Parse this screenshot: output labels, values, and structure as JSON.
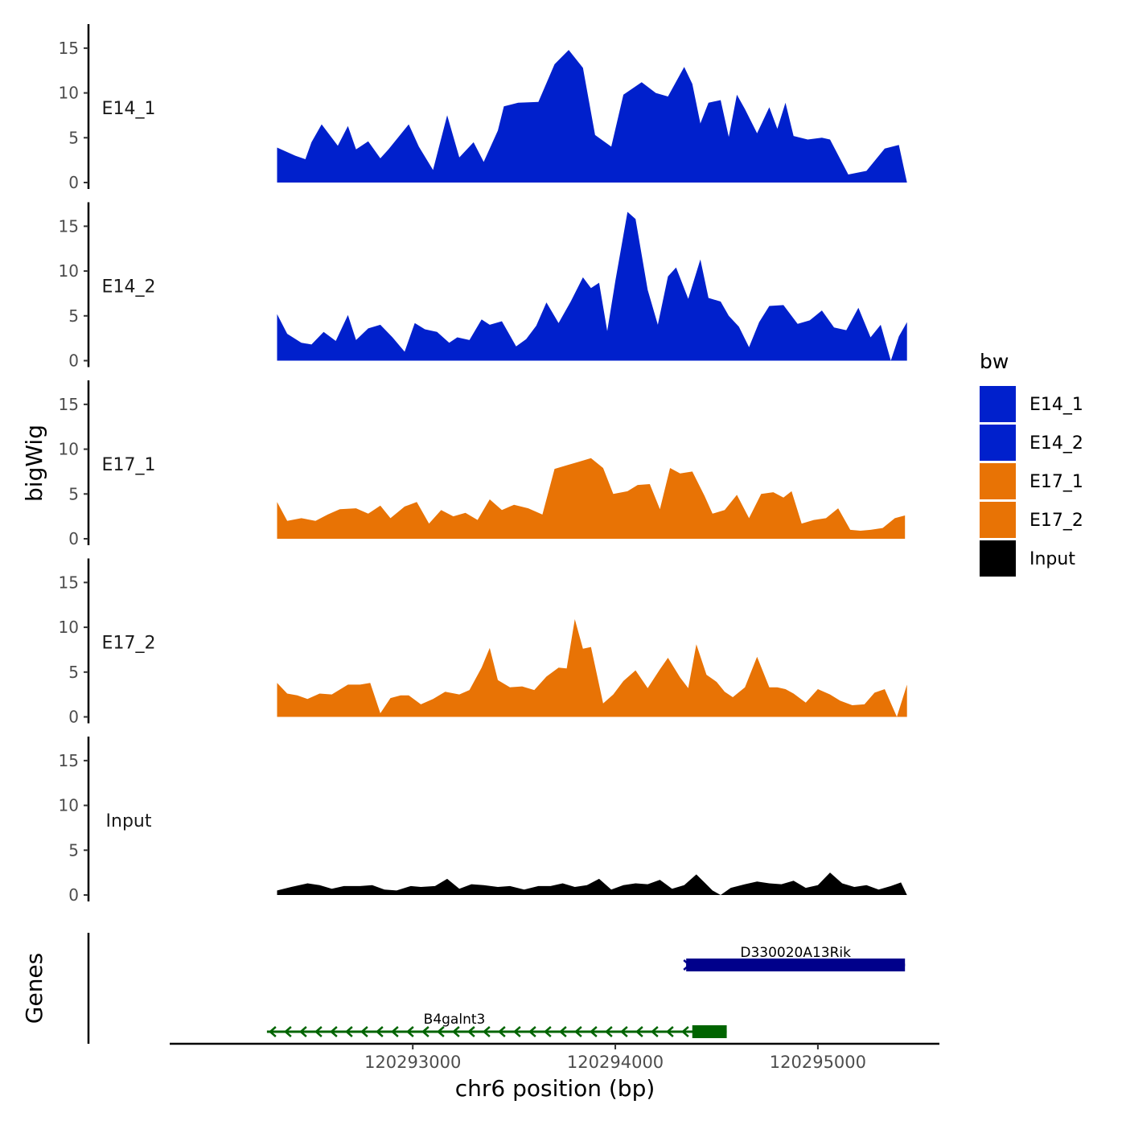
{
  "chart_data": {
    "type": "area",
    "title": "",
    "xlabel": "chr6 position (bp)",
    "ylabel": "bigWig",
    "genes_label": "Genes",
    "xlim": [
      120291800,
      120295600
    ],
    "x_ticks": [
      120293000,
      120294000,
      120295000
    ],
    "x_tick_labels": [
      "120293000",
      "120294000",
      "120295000"
    ],
    "ylim": [
      0,
      17.5
    ],
    "y_ticks": [
      0,
      5,
      10,
      15
    ],
    "y_tick_labels": [
      "0",
      "5",
      "10",
      "15"
    ],
    "grid": false,
    "legend": {
      "title": "bw",
      "position": "right",
      "entries": [
        {
          "label": "E14_1",
          "color": "#0020CC"
        },
        {
          "label": "E14_2",
          "color": "#0020CC"
        },
        {
          "label": "E17_1",
          "color": "#E87305"
        },
        {
          "label": "E17_2",
          "color": "#E87305"
        },
        {
          "label": "Input",
          "color": "#000000"
        }
      ]
    },
    "series": [
      {
        "name": "E14_1",
        "color": "#0020CC",
        "x": [
          120292330,
          120292420,
          120292470,
          120292500,
          120292550,
          120292630,
          120292680,
          120292720,
          120292780,
          120292840,
          120292880,
          120292980,
          120293030,
          120293100,
          120293170,
          120293230,
          120293300,
          120293350,
          120293420,
          120293450,
          120293520,
          120293620,
          120293700,
          120293770,
          120293840,
          120293900,
          120293980,
          120294040,
          120294130,
          120294200,
          120294260,
          120294340,
          120294380,
          120294420,
          120294460,
          120294520,
          120294560,
          120294600,
          120294640,
          120294700,
          120294760,
          120294800,
          120294840,
          120294880,
          120294950,
          120295020,
          120295060,
          120295150,
          120295240,
          120295330,
          120295400,
          120295440
        ],
        "y": [
          3.9,
          3.0,
          2.6,
          4.5,
          6.5,
          4.1,
          6.3,
          3.7,
          4.6,
          2.7,
          3.7,
          6.5,
          4.0,
          1.4,
          7.5,
          2.8,
          4.5,
          2.3,
          5.8,
          8.5,
          8.9,
          9.0,
          13.2,
          14.8,
          12.8,
          5.3,
          4.0,
          9.8,
          11.2,
          10.0,
          9.6,
          12.9,
          11.0,
          6.6,
          8.9,
          9.2,
          5.1,
          9.8,
          8.2,
          5.5,
          8.4,
          6.0,
          8.9,
          5.2,
          4.8,
          5.0,
          4.8,
          0.9,
          1.3,
          3.8,
          4.2,
          0.0
        ]
      },
      {
        "name": "E14_2",
        "color": "#0020CC",
        "x": [
          120292330,
          120292380,
          120292450,
          120292500,
          120292560,
          120292620,
          120292680,
          120292720,
          120292780,
          120292840,
          120292900,
          120292960,
          120293010,
          120293060,
          120293120,
          120293180,
          120293220,
          120293280,
          120293340,
          120293380,
          120293440,
          120293510,
          120293560,
          120293610,
          120293660,
          120293720,
          120293780,
          120293840,
          120293880,
          120293920,
          120293960,
          120294000,
          120294060,
          120294100,
          120294160,
          120294210,
          120294260,
          120294300,
          120294360,
          120294420,
          120294460,
          120294520,
          120294560,
          120294610,
          120294660,
          120294710,
          120294760,
          120294830,
          120294900,
          120294960,
          120295020,
          120295080,
          120295140,
          120295200,
          120295260,
          120295310,
          120295360,
          120295400,
          120295440
        ],
        "y": [
          5.2,
          3.0,
          2.0,
          1.8,
          3.2,
          2.2,
          5.1,
          2.3,
          3.6,
          4.0,
          2.6,
          1.0,
          4.2,
          3.5,
          3.2,
          2.0,
          2.6,
          2.3,
          4.6,
          4.0,
          4.4,
          1.6,
          2.4,
          3.9,
          6.5,
          4.2,
          6.6,
          9.3,
          8.1,
          8.7,
          3.3,
          8.9,
          16.6,
          15.8,
          7.9,
          4.0,
          9.4,
          10.4,
          6.9,
          11.3,
          7.0,
          6.6,
          5.0,
          3.8,
          1.5,
          4.3,
          6.1,
          6.2,
          4.1,
          4.5,
          5.6,
          3.7,
          3.4,
          5.9,
          2.6,
          4.0,
          0.0,
          2.7,
          4.3
        ]
      },
      {
        "name": "E17_1",
        "color": "#E87305",
        "x": [
          120292330,
          120292380,
          120292450,
          120292520,
          120292580,
          120292640,
          120292720,
          120292780,
          120292840,
          120292890,
          120292960,
          120293020,
          120293080,
          120293140,
          120293200,
          120293260,
          120293320,
          120293380,
          120293440,
          120293500,
          120293570,
          120293640,
          120293700,
          120293760,
          120293820,
          120293880,
          120293940,
          120293990,
          120294060,
          120294110,
          120294170,
          120294220,
          120294270,
          120294320,
          120294380,
          120294440,
          120294480,
          120294540,
          120294600,
          120294660,
          120294720,
          120294780,
          120294830,
          120294870,
          120294920,
          120294980,
          120295040,
          120295100,
          120295160,
          120295210,
          120295260,
          120295320,
          120295380,
          120295430
        ],
        "y": [
          4.1,
          2.0,
          2.3,
          2.0,
          2.7,
          3.3,
          3.4,
          2.8,
          3.7,
          2.3,
          3.6,
          4.1,
          1.7,
          3.2,
          2.5,
          2.9,
          2.1,
          4.4,
          3.2,
          3.8,
          3.4,
          2.7,
          7.8,
          8.2,
          8.6,
          9.0,
          7.9,
          5.0,
          5.3,
          6.0,
          6.1,
          3.3,
          7.9,
          7.3,
          7.5,
          4.8,
          2.8,
          3.2,
          4.9,
          2.3,
          5.0,
          5.2,
          4.6,
          5.3,
          1.7,
          2.1,
          2.3,
          3.4,
          1.0,
          0.9,
          1.0,
          1.2,
          2.3,
          2.6
        ]
      },
      {
        "name": "E17_2",
        "color": "#E87305",
        "x": [
          120292330,
          120292380,
          120292430,
          120292480,
          120292540,
          120292600,
          120292680,
          120292740,
          120292790,
          120292840,
          120292890,
          120292940,
          120292980,
          120293040,
          120293100,
          120293160,
          120293230,
          120293280,
          120293340,
          120293380,
          120293420,
          120293480,
          120293540,
          120293600,
          120293660,
          120293720,
          120293760,
          120293800,
          120293840,
          120293880,
          120293940,
          120293990,
          120294040,
          120294100,
          120294160,
          120294220,
          120294260,
          120294320,
          120294360,
          120294400,
          120294450,
          120294500,
          120294540,
          120294580,
          120294640,
          120294700,
          120294760,
          120294800,
          120294840,
          120294880,
          120294940,
          120295000,
          120295060,
          120295110,
          120295170,
          120295230,
          120295280,
          120295330,
          120295390,
          120295440
        ],
        "y": [
          3.8,
          2.6,
          2.4,
          2.0,
          2.6,
          2.5,
          3.6,
          3.6,
          3.8,
          0.4,
          2.1,
          2.4,
          2.4,
          1.4,
          2.0,
          2.8,
          2.5,
          3.0,
          5.5,
          7.7,
          4.1,
          3.3,
          3.4,
          3.0,
          4.5,
          5.5,
          5.4,
          10.9,
          7.6,
          7.8,
          1.5,
          2.5,
          4.0,
          5.2,
          3.2,
          5.3,
          6.6,
          4.4,
          3.2,
          8.1,
          4.7,
          3.9,
          2.8,
          2.2,
          3.3,
          6.7,
          3.3,
          3.3,
          3.1,
          2.6,
          1.6,
          3.1,
          2.5,
          1.8,
          1.3,
          1.4,
          2.7,
          3.1,
          0.0,
          3.6
        ]
      },
      {
        "name": "Input",
        "color": "#000000",
        "x": [
          120292330,
          120292400,
          120292480,
          120292540,
          120292600,
          120292660,
          120292740,
          120292800,
          120292860,
          120292920,
          120292990,
          120293040,
          120293110,
          120293170,
          120293230,
          120293290,
          120293350,
          120293420,
          120293480,
          120293550,
          120293620,
          120293680,
          120293740,
          120293800,
          120293860,
          120293920,
          120293980,
          120294040,
          120294100,
          120294160,
          120294220,
          120294280,
          120294340,
          120294400,
          120294440,
          120294480,
          120294520,
          120294570,
          120294640,
          120294700,
          120294760,
          120294820,
          120294880,
          120294940,
          120295000,
          120295060,
          120295120,
          120295180,
          120295240,
          120295300,
          120295360,
          120295410,
          120295440
        ],
        "y": [
          0.5,
          0.9,
          1.3,
          1.1,
          0.7,
          1.0,
          1.0,
          1.1,
          0.6,
          0.5,
          1.0,
          0.9,
          1.0,
          1.8,
          0.7,
          1.2,
          1.1,
          0.9,
          1.0,
          0.6,
          1.0,
          1.0,
          1.3,
          0.9,
          1.1,
          1.8,
          0.6,
          1.1,
          1.3,
          1.2,
          1.7,
          0.7,
          1.1,
          2.3,
          1.4,
          0.5,
          0.0,
          0.8,
          1.2,
          1.5,
          1.3,
          1.2,
          1.6,
          0.8,
          1.1,
          2.5,
          1.3,
          0.9,
          1.1,
          0.6,
          1.0,
          1.4,
          0.0
        ]
      }
    ],
    "genes": [
      {
        "name": "D330020A13Rik",
        "strand": "+",
        "start": 120294350,
        "end": 120295430,
        "color": "#00008B",
        "row": 0,
        "thick_start": 120294350,
        "thick_end": 120295430
      },
      {
        "name": "B4galnt3",
        "strand": "-",
        "start": 120292280,
        "end": 120294550,
        "color": "#006400",
        "row": 1,
        "thick_start": 120294380,
        "thick_end": 120294550
      }
    ]
  }
}
